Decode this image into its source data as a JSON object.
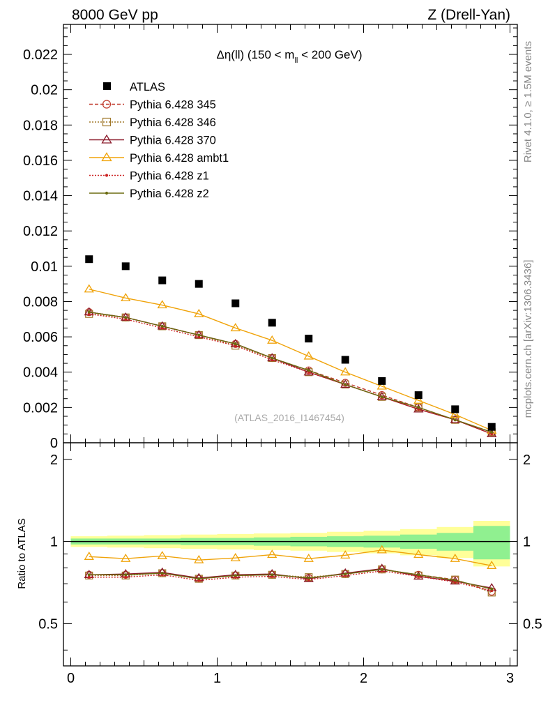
{
  "header": {
    "left": "8000 GeV pp",
    "right": "Z (Drell-Yan)"
  },
  "side": {
    "rivet": "Rivet 4.1.0, ≥ 1.5M events",
    "mcplots": "mcplots.cern.ch [arXiv:1306.3436]"
  },
  "chart_data": {
    "type": "scatter",
    "title_main": "Δη(ll) (150 < m",
    "title_sub": "ll",
    "title_tail": " < 200 GeV)",
    "watermark": "(ATLAS_2016_I1467454)",
    "xlabel": "",
    "ylabel_ratio": "Ratio to ATLAS",
    "xlim": [
      -0.05,
      3.05
    ],
    "ylim": [
      0,
      0.0237
    ],
    "ratio_ylim": [
      0.35,
      2.3
    ],
    "x_ticks": [
      "0",
      "1",
      "2",
      "3"
    ],
    "y_ticks": [
      "0",
      "0.002",
      "0.004",
      "0.006",
      "0.008",
      "0.01",
      "0.012",
      "0.014",
      "0.016",
      "0.018",
      "0.02",
      "0.022"
    ],
    "ratio_ticks": [
      "0.5",
      "1",
      "2"
    ],
    "x": [
      0.125,
      0.375,
      0.625,
      0.875,
      1.125,
      1.375,
      1.625,
      1.875,
      2.125,
      2.375,
      2.625,
      2.875
    ],
    "bin_edges": [
      0,
      0.25,
      0.5,
      0.75,
      1.0,
      1.25,
      1.5,
      1.75,
      2.0,
      2.25,
      2.5,
      2.75,
      3.0
    ],
    "data": {
      "name": "ATLAS",
      "values": [
        0.0104,
        0.01,
        0.0092,
        0.009,
        0.0079,
        0.0068,
        0.0059,
        0.0047,
        0.0035,
        0.0027,
        0.0019,
        0.0009
      ],
      "stat_band": [
        0.025,
        0.025,
        0.025,
        0.03,
        0.03,
        0.035,
        0.04,
        0.045,
        0.05,
        0.06,
        0.075,
        0.14
      ],
      "tot_band": [
        0.045,
        0.05,
        0.055,
        0.06,
        0.065,
        0.07,
        0.075,
        0.085,
        0.095,
        0.11,
        0.13,
        0.19
      ]
    },
    "series": [
      {
        "name": "Pythia 6.428 345",
        "color": "#c0392b",
        "style": "dashed",
        "marker": "circle",
        "values": [
          0.0074,
          0.0071,
          0.0066,
          0.0061,
          0.0056,
          0.0048,
          0.0041,
          0.0034,
          0.0027,
          0.002,
          0.0013,
          0.0006
        ],
        "ratio": [
          0.755,
          0.755,
          0.765,
          0.73,
          0.75,
          0.755,
          0.735,
          0.76,
          0.79,
          0.755,
          0.725,
          0.655
        ]
      },
      {
        "name": "Pythia 6.428 346",
        "color": "#a0782a",
        "style": "dotted",
        "marker": "square",
        "values": [
          0.0073,
          0.0071,
          0.0066,
          0.0061,
          0.0055,
          0.0048,
          0.004,
          0.0033,
          0.0026,
          0.002,
          0.0013,
          0.0006
        ],
        "ratio": [
          0.75,
          0.75,
          0.765,
          0.73,
          0.75,
          0.755,
          0.74,
          0.76,
          0.79,
          0.75,
          0.725,
          0.65
        ]
      },
      {
        "name": "Pythia 6.428 370",
        "color": "#8b1a2b",
        "style": "solid",
        "marker": "triangle",
        "values": [
          0.0074,
          0.0071,
          0.0066,
          0.0061,
          0.0056,
          0.0048,
          0.004,
          0.0033,
          0.0026,
          0.0019,
          0.0013,
          0.0005
        ],
        "ratio": [
          0.755,
          0.76,
          0.77,
          0.735,
          0.755,
          0.76,
          0.73,
          0.765,
          0.795,
          0.745,
          0.715,
          0.675
        ]
      },
      {
        "name": "Pythia 6.428 ambt1",
        "color": "#f0a30a",
        "style": "solid",
        "marker": "triangle",
        "values": [
          0.0087,
          0.0082,
          0.0078,
          0.0073,
          0.0065,
          0.0058,
          0.0049,
          0.004,
          0.0032,
          0.0024,
          0.0016,
          0.0007
        ],
        "ratio": [
          0.88,
          0.865,
          0.885,
          0.855,
          0.87,
          0.895,
          0.865,
          0.89,
          0.93,
          0.895,
          0.865,
          0.815
        ]
      },
      {
        "name": "Pythia 6.428 z1",
        "color": "#cc2222",
        "style": "dotted",
        "marker": "dot",
        "values": [
          0.0073,
          0.007,
          0.0065,
          0.006,
          0.0055,
          0.0047,
          0.004,
          0.0033,
          0.0026,
          0.0019,
          0.0013,
          0.0005
        ],
        "ratio": [
          0.74,
          0.74,
          0.755,
          0.72,
          0.74,
          0.745,
          0.725,
          0.75,
          0.78,
          0.745,
          0.71,
          0.66
        ]
      },
      {
        "name": "Pythia 6.428 z2",
        "color": "#6b6b10",
        "style": "solid",
        "marker": "dot",
        "values": [
          0.0074,
          0.0071,
          0.0066,
          0.0061,
          0.0056,
          0.0048,
          0.0041,
          0.0033,
          0.0026,
          0.002,
          0.0013,
          0.0006
        ],
        "ratio": [
          0.755,
          0.755,
          0.765,
          0.73,
          0.75,
          0.755,
          0.735,
          0.76,
          0.79,
          0.755,
          0.72,
          0.67
        ]
      }
    ],
    "colors": {
      "stat_band": "#90f090",
      "tot_band": "#ffff99",
      "data_marker": "#000000"
    }
  }
}
